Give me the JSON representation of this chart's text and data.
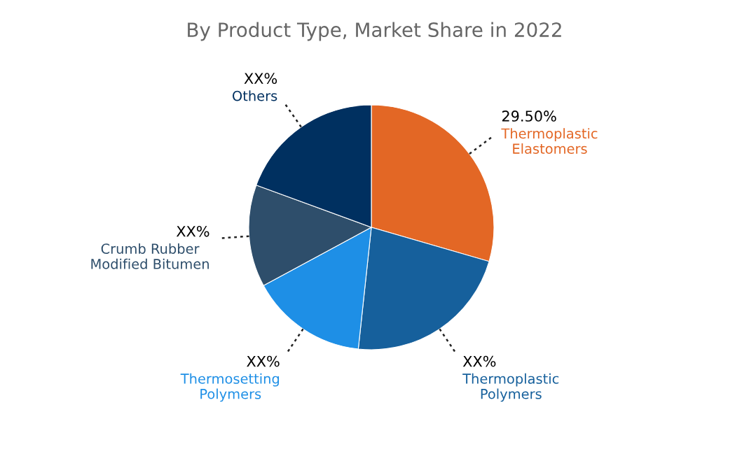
{
  "chart_data": {
    "type": "pie",
    "title": "By Product Type, Market Share in 2022",
    "categories": [
      "Thermoplastic Elastomers",
      "Thermoplastic Polymers",
      "Thermosetting Polymers",
      "Crumb Rubber Modified Bitumen",
      "Others"
    ],
    "values": [
      29.5,
      22.2,
      15.4,
      13.5,
      19.4
    ],
    "colors": [
      "#e36725",
      "#16609c",
      "#1e8fe6",
      "#2e4e6b",
      "#003060"
    ],
    "value_labels": [
      "29.50%",
      "XX%",
      "XX%",
      "XX%",
      "XX%"
    ]
  }
}
